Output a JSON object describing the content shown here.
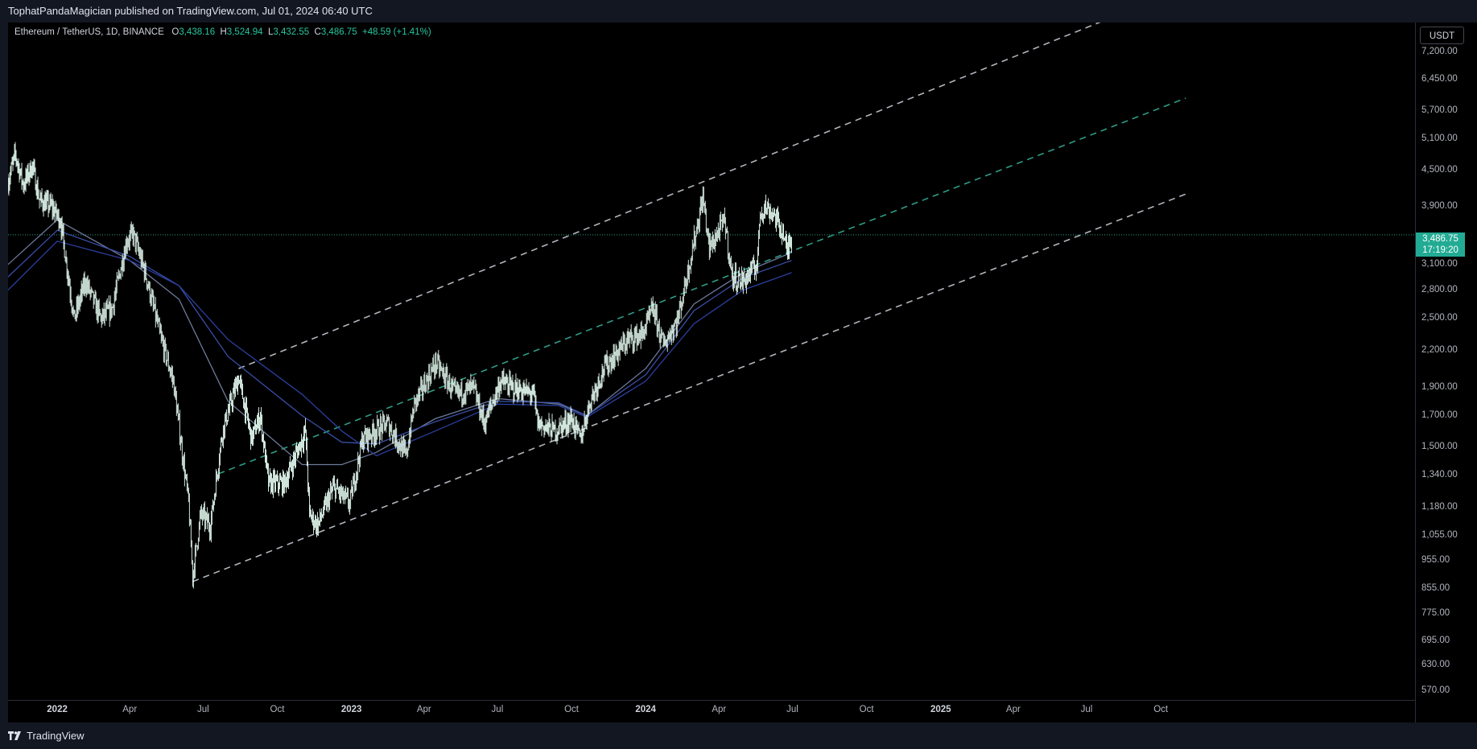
{
  "header": {
    "publisher_text": "TophatPandaMagician published on TradingView.com, Jul 01, 2024 06:40 UTC"
  },
  "legend": {
    "symbol": "Ethereum / TetherUS, 1D, BINANCE",
    "open_key": "O",
    "open": "3,438.16",
    "high_key": "H",
    "high": "3,524.94",
    "low_key": "L",
    "low": "3,432.55",
    "close_key": "C",
    "close": "3,486.75",
    "change": "+48.59 (+1.41%)"
  },
  "currency_button": "USDT",
  "last_price": {
    "price": "3,486.75",
    "countdown": "17:19:20"
  },
  "footer": {
    "brand": "TradingView"
  },
  "colors": {
    "accent": "#22ab94",
    "candles": "#e8fff5",
    "channel_outer": "#b2b5be",
    "channel_mid": "#2e9c86",
    "ma_fast": "#6d7a9a",
    "ma_mid": "#3a4fa8",
    "ma_slow": "#2b3f9e",
    "price_line": "#2e9c86"
  },
  "chart_data": {
    "type": "candlestick",
    "scale": "log",
    "ylim": [
      550,
      7800
    ],
    "price_ticks": [
      "7,200.00",
      "6,450.00",
      "5,700.00",
      "5,100.00",
      "4,500.00",
      "3,900.00",
      "3,100.00",
      "2,800.00",
      "2,500.00",
      "2,200.00",
      "1,900.00",
      "1,700.00",
      "1,500.00",
      "1,340.00",
      "1,180.00",
      "1,055.00",
      "955.00",
      "855.00",
      "775.00",
      "695.00",
      "630.00",
      "570.00"
    ],
    "time_ticks": [
      {
        "label": "2022",
        "date": "2022-01-01",
        "bold": true
      },
      {
        "label": "Apr",
        "date": "2022-04-01"
      },
      {
        "label": "Jul",
        "date": "2022-07-01"
      },
      {
        "label": "Oct",
        "date": "2022-10-01"
      },
      {
        "label": "2023",
        "date": "2023-01-01",
        "bold": true
      },
      {
        "label": "Apr",
        "date": "2023-04-01"
      },
      {
        "label": "Jul",
        "date": "2023-07-01"
      },
      {
        "label": "Oct",
        "date": "2023-10-01"
      },
      {
        "label": "2024",
        "date": "2024-01-01",
        "bold": true
      },
      {
        "label": "Apr",
        "date": "2024-04-01"
      },
      {
        "label": "Jul",
        "date": "2024-07-01"
      },
      {
        "label": "Oct",
        "date": "2024-10-01"
      },
      {
        "label": "2025",
        "date": "2025-01-01",
        "bold": true
      },
      {
        "label": "Apr",
        "date": "2025-04-01"
      },
      {
        "label": "Jul",
        "date": "2025-07-01"
      },
      {
        "label": "Oct",
        "date": "2025-10-01"
      }
    ],
    "price_path": [
      [
        "2021-11-01",
        4300
      ],
      [
        "2021-11-10",
        4800
      ],
      [
        "2021-11-20",
        4250
      ],
      [
        "2021-12-01",
        4600
      ],
      [
        "2021-12-10",
        4000
      ],
      [
        "2021-12-25",
        3900
      ],
      [
        "2022-01-05",
        3700
      ],
      [
        "2022-01-22",
        2500
      ],
      [
        "2022-02-05",
        2900
      ],
      [
        "2022-02-24",
        2500
      ],
      [
        "2022-03-10",
        2600
      ],
      [
        "2022-03-28",
        3400
      ],
      [
        "2022-04-05",
        3500
      ],
      [
        "2022-04-20",
        3000
      ],
      [
        "2022-05-10",
        2300
      ],
      [
        "2022-05-25",
        1950
      ],
      [
        "2022-06-13",
        1200
      ],
      [
        "2022-06-18",
        900
      ],
      [
        "2022-06-28",
        1150
      ],
      [
        "2022-07-10",
        1100
      ],
      [
        "2022-07-25",
        1600
      ],
      [
        "2022-08-14",
        1980
      ],
      [
        "2022-08-30",
        1550
      ],
      [
        "2022-09-10",
        1700
      ],
      [
        "2022-09-20",
        1300
      ],
      [
        "2022-10-10",
        1300
      ],
      [
        "2022-11-05",
        1600
      ],
      [
        "2022-11-10",
        1150
      ],
      [
        "2022-11-20",
        1100
      ],
      [
        "2022-12-10",
        1280
      ],
      [
        "2022-12-30",
        1200
      ],
      [
        "2023-01-15",
        1550
      ],
      [
        "2023-02-15",
        1650
      ],
      [
        "2023-03-10",
        1450
      ],
      [
        "2023-03-20",
        1780
      ],
      [
        "2023-04-16",
        2100
      ],
      [
        "2023-05-10",
        1850
      ],
      [
        "2023-06-01",
        1900
      ],
      [
        "2023-06-15",
        1650
      ],
      [
        "2023-07-05",
        1950
      ],
      [
        "2023-07-20",
        1900
      ],
      [
        "2023-08-15",
        1850
      ],
      [
        "2023-08-20",
        1650
      ],
      [
        "2023-09-10",
        1600
      ],
      [
        "2023-10-01",
        1680
      ],
      [
        "2023-10-12",
        1550
      ],
      [
        "2023-10-24",
        1800
      ],
      [
        "2023-11-10",
        2050
      ],
      [
        "2023-12-10",
        2300
      ],
      [
        "2023-12-28",
        2350
      ],
      [
        "2024-01-10",
        2600
      ],
      [
        "2024-01-23",
        2250
      ],
      [
        "2024-02-10",
        2500
      ],
      [
        "2024-03-01",
        3400
      ],
      [
        "2024-03-12",
        4050
      ],
      [
        "2024-03-20",
        3300
      ],
      [
        "2024-04-08",
        3700
      ],
      [
        "2024-04-17",
        2950
      ],
      [
        "2024-05-01",
        2900
      ],
      [
        "2024-05-18",
        3100
      ],
      [
        "2024-05-22",
        3800
      ],
      [
        "2024-05-27",
        3900
      ],
      [
        "2024-06-07",
        3800
      ],
      [
        "2024-06-20",
        3500
      ],
      [
        "2024-06-24",
        3250
      ],
      [
        "2024-06-30",
        3486.75
      ]
    ],
    "moving_averages": [
      {
        "points": [
          [
            "2021-11-01",
            3100
          ],
          [
            "2022-01-01",
            3700
          ],
          [
            "2022-04-01",
            3150
          ],
          [
            "2022-06-01",
            2700
          ],
          [
            "2022-08-01",
            1800
          ],
          [
            "2022-11-01",
            1400
          ],
          [
            "2022-12-20",
            1400
          ],
          [
            "2023-02-01",
            1470
          ],
          [
            "2023-04-15",
            1680
          ],
          [
            "2023-07-01",
            1820
          ],
          [
            "2023-09-15",
            1780
          ],
          [
            "2023-10-20",
            1700
          ],
          [
            "2024-01-01",
            2050
          ],
          [
            "2024-03-01",
            2650
          ],
          [
            "2024-05-01",
            3000
          ],
          [
            "2024-06-30",
            3250
          ]
        ]
      },
      {
        "points": [
          [
            "2021-11-01",
            2950
          ],
          [
            "2022-01-01",
            3550
          ],
          [
            "2022-04-01",
            3200
          ],
          [
            "2022-06-01",
            2850
          ],
          [
            "2022-08-01",
            2150
          ],
          [
            "2022-11-01",
            1700
          ],
          [
            "2022-12-20",
            1530
          ],
          [
            "2023-02-01",
            1520
          ],
          [
            "2023-04-15",
            1660
          ],
          [
            "2023-07-01",
            1800
          ],
          [
            "2023-09-15",
            1790
          ],
          [
            "2023-10-20",
            1700
          ],
          [
            "2024-01-01",
            2000
          ],
          [
            "2024-03-01",
            2580
          ],
          [
            "2024-05-01",
            2940
          ],
          [
            "2024-06-30",
            3150
          ]
        ]
      },
      {
        "points": [
          [
            "2021-11-01",
            2800
          ],
          [
            "2022-01-01",
            3400
          ],
          [
            "2022-04-01",
            3150
          ],
          [
            "2022-06-01",
            2850
          ],
          [
            "2022-08-01",
            2300
          ],
          [
            "2022-11-01",
            1850
          ],
          [
            "2022-12-20",
            1600
          ],
          [
            "2023-02-01",
            1450
          ],
          [
            "2023-04-15",
            1600
          ],
          [
            "2023-07-01",
            1780
          ],
          [
            "2023-09-15",
            1770
          ],
          [
            "2023-10-20",
            1690
          ],
          [
            "2024-01-01",
            1950
          ],
          [
            "2024-03-01",
            2450
          ],
          [
            "2024-05-01",
            2800
          ],
          [
            "2024-06-30",
            3000
          ]
        ]
      }
    ],
    "channel": {
      "upper": [
        [
          "2022-08-14",
          2050
        ],
        [
          "2025-09-01",
          8600
        ]
      ],
      "middle": [
        [
          "2022-07-20",
          1350
        ],
        [
          "2025-11-01",
          6000
        ]
      ],
      "lower": [
        [
          "2022-06-18",
          880
        ],
        [
          "2025-11-01",
          4100
        ]
      ]
    },
    "last_price_line": 3486.75
  }
}
